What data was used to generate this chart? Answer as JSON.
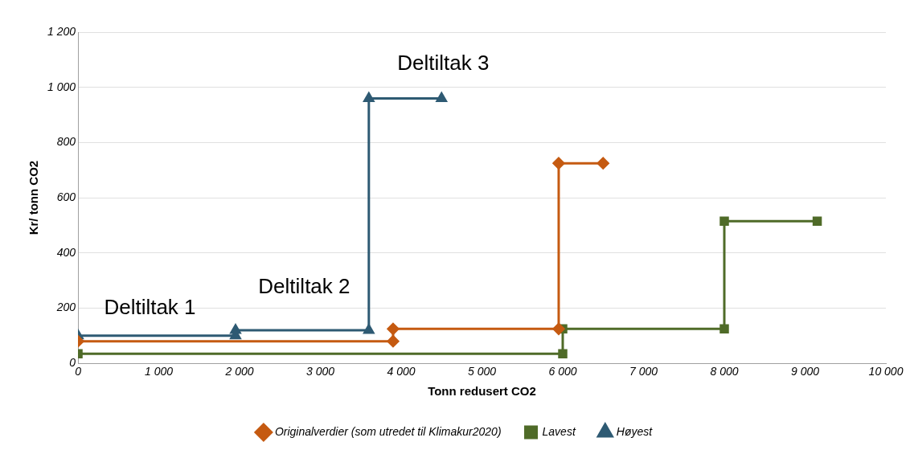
{
  "chart_data": {
    "type": "line",
    "xlabel": "Tonn redusert CO2",
    "ylabel": "Kr/ tonn CO2",
    "series": [
      {
        "name": "Originalverdier (som utredet til Klimakur2020)",
        "color": "#c55a11",
        "marker": "diamond",
        "x": [
          0,
          3900,
          3900,
          5950,
          5950,
          6500
        ],
        "values": [
          80,
          80,
          125,
          125,
          725,
          725
        ]
      },
      {
        "name": "Lavest",
        "color": "#4f6b28",
        "marker": "square",
        "x": [
          0,
          6000,
          6000,
          8000,
          8000,
          9150
        ],
        "values": [
          35,
          35,
          125,
          125,
          515,
          515
        ]
      },
      {
        "name": "Høyest",
        "color": "#2e5a73",
        "marker": "triangle",
        "x": [
          0,
          1950,
          1950,
          3600,
          3600,
          4500
        ],
        "values": [
          100,
          100,
          120,
          120,
          960,
          960
        ]
      }
    ],
    "xlim": [
      0,
      10000
    ],
    "xticks": [
      {
        "value": 0,
        "label": "0"
      },
      {
        "value": 1000,
        "label": "1 000"
      },
      {
        "value": 2000,
        "label": "2 000"
      },
      {
        "value": 3000,
        "label": "3 000"
      },
      {
        "value": 4000,
        "label": "4 000"
      },
      {
        "value": 5000,
        "label": "5 000"
      },
      {
        "value": 6000,
        "label": "6 000"
      },
      {
        "value": 7000,
        "label": "7 000"
      },
      {
        "value": 8000,
        "label": "8 000"
      },
      {
        "value": 9000,
        "label": "9 000"
      },
      {
        "value": 10000,
        "label": "10 000"
      }
    ],
    "ylim": [
      0,
      1200
    ],
    "yticks": [
      {
        "value": 0,
        "label": "0"
      },
      {
        "value": 200,
        "label": "200"
      },
      {
        "value": 400,
        "label": "400"
      },
      {
        "value": 600,
        "label": "600"
      },
      {
        "value": 800,
        "label": "800"
      },
      {
        "value": 1000,
        "label": "1 000"
      },
      {
        "value": 1200,
        "label": "1 200"
      }
    ],
    "grid": "y",
    "legend": "bottom",
    "line_style": "solid",
    "annotations": [
      "Deltiltak 1",
      "Deltiltak 2",
      "Deltiltak 3"
    ]
  }
}
